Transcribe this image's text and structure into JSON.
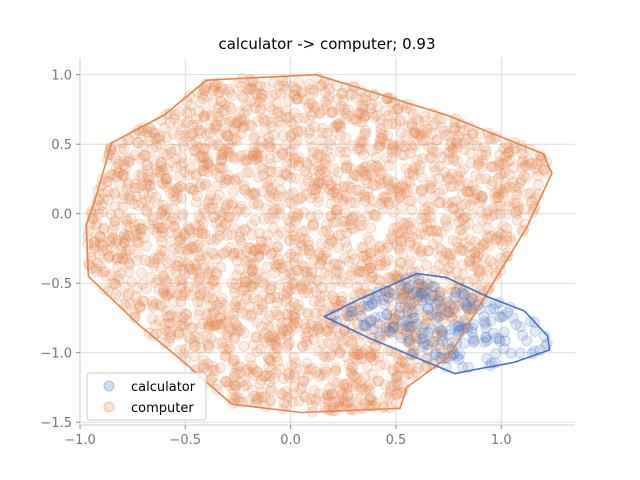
{
  "chart_data": {
    "type": "scatter",
    "title": "calculator -> computer; 0.93",
    "xlabel": "",
    "ylabel": "",
    "xlim": [
      -1.0,
      1.35
    ],
    "ylim": [
      -1.52,
      1.12
    ],
    "x_ticks": [
      -1.0,
      -0.5,
      0.0,
      0.5,
      1.0
    ],
    "x_tick_labels": [
      "−1.0",
      "−0.5",
      "0.0",
      "0.5",
      "1.0"
    ],
    "y_ticks": [
      -1.5,
      -1.0,
      -0.5,
      0.0,
      0.5,
      1.0
    ],
    "y_tick_labels": [
      "−1.5",
      "−1.0",
      "−0.5",
      "0.0",
      "0.5",
      "1.0"
    ],
    "grid": true,
    "legend_position": "lower-left",
    "series": [
      {
        "name": "calculator",
        "color": "#4472c4",
        "hull": [
          [
            0.16,
            -0.74
          ],
          [
            0.32,
            -0.62
          ],
          [
            0.6,
            -0.43
          ],
          [
            0.74,
            -0.46
          ],
          [
            0.94,
            -0.6
          ],
          [
            1.11,
            -0.7
          ],
          [
            1.22,
            -0.88
          ],
          [
            1.23,
            -0.98
          ],
          [
            1.06,
            -1.07
          ],
          [
            0.88,
            -1.12
          ],
          [
            0.78,
            -1.15
          ],
          [
            0.38,
            -0.9
          ]
        ],
        "point_count": 200
      },
      {
        "name": "computer",
        "color": "#e6854a",
        "hull": [
          [
            -0.85,
            0.51
          ],
          [
            -0.6,
            0.71
          ],
          [
            -0.4,
            0.96
          ],
          [
            0.12,
            1.0
          ],
          [
            0.74,
            0.71
          ],
          [
            1.2,
            0.43
          ],
          [
            1.24,
            0.29
          ],
          [
            1.12,
            -0.1
          ],
          [
            0.98,
            -0.45
          ],
          [
            0.85,
            -0.78
          ],
          [
            0.75,
            -1.03
          ],
          [
            0.55,
            -1.25
          ],
          [
            0.52,
            -1.4
          ],
          [
            0.05,
            -1.43
          ],
          [
            -0.28,
            -1.37
          ],
          [
            -0.52,
            -1.05
          ],
          [
            -0.72,
            -0.8
          ],
          [
            -0.96,
            -0.45
          ],
          [
            -0.97,
            -0.08
          ],
          [
            -0.93,
            0.09
          ]
        ],
        "point_count": 2600
      }
    ]
  }
}
